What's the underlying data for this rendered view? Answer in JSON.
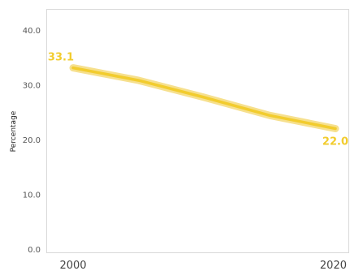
{
  "chart_data": {
    "type": "line",
    "title": "",
    "xlabel": "",
    "ylabel": "Percentage",
    "x": [
      2000,
      2005,
      2010,
      2015,
      2020
    ],
    "ylim": [
      0,
      44
    ],
    "yticks": [
      "0.0",
      "10.0",
      "20.0",
      "30.0",
      "40.0"
    ],
    "xticks": [
      "2000",
      "2020"
    ],
    "series": [
      {
        "values": [
          33.1,
          30.8,
          27.7,
          24.4,
          22.0
        ],
        "color": "#f2cc2e",
        "band_color": "#f6e08e"
      }
    ],
    "data_labels": [
      {
        "text": "33.1",
        "index": 0
      },
      {
        "text": "22.0",
        "index": 4
      }
    ],
    "grid": false,
    "legend": "none"
  }
}
